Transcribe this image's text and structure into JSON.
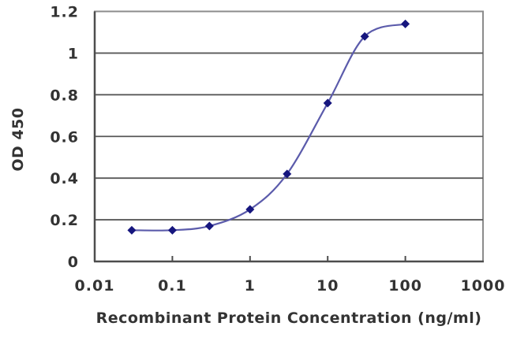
{
  "figure": {
    "background": "#ffffff"
  },
  "chart_data": {
    "type": "line",
    "title": "",
    "x": [
      0.03,
      0.1,
      0.3,
      1,
      3,
      10,
      30,
      100
    ],
    "y": [
      0.15,
      0.15,
      0.17,
      0.25,
      0.42,
      0.76,
      1.08,
      1.14
    ],
    "xlabel": "Recombinant Protein Concentration (ng/ml)",
    "ylabel": "OD 450",
    "x_scale": "log",
    "xlim": [
      0.01,
      1000
    ],
    "ylim": [
      0,
      1.2
    ],
    "x_ticks": [
      "0.01",
      "0.1",
      "1",
      "10",
      "100",
      "1000"
    ],
    "y_ticks": [
      "0",
      "0.2",
      "0.4",
      "0.6",
      "0.8",
      "1",
      "1.2"
    ],
    "grid": "horizontal-only",
    "legend": "none",
    "line_smooth": true,
    "line_color": "#5b5bab",
    "marker_shape": "diamond",
    "marker_color": "#16167e",
    "gridline_color": "#595959",
    "axis_color": "#4d4d4d",
    "border_color": "#8c8c8c",
    "text_color": "#333333"
  }
}
